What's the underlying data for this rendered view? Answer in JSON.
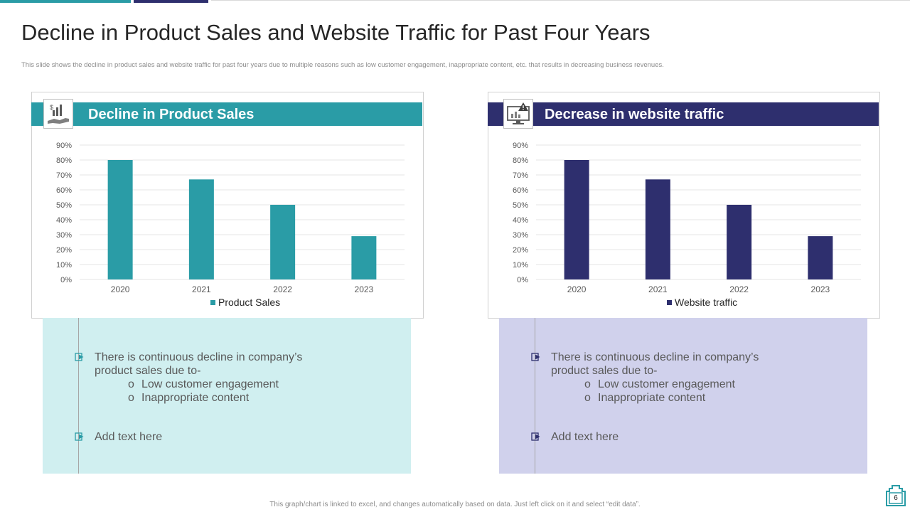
{
  "title": "Decline in Product Sales and Website Traffic for Past Four Years",
  "subtitle": "This slide shows the decline in product sales and website traffic for past four years due to multiple reasons such as low customer engagement, inappropriate content, etc. that results in decreasing business revenues.",
  "colors": {
    "teal": "#2a9ca6",
    "navy": "#2e2f6e",
    "teal_light": "#d0eff0",
    "navy_light": "#d0d1ec"
  },
  "panels": [
    {
      "header": "Decline in Product Sales",
      "icon": "hand-chart-icon",
      "bullets": [
        {
          "line1": "There is continuous  decline in company’s",
          "line2": "product sales due to-"
        },
        {
          "line1": "Add text here"
        }
      ],
      "subbullets": [
        {
          "marker": "o",
          "text": "Low customer engagement"
        },
        {
          "marker": "o",
          "text": "Inappropriate content"
        }
      ]
    },
    {
      "header": "Decrease in website traffic",
      "icon": "monitor-warning-icon",
      "bullets": [
        {
          "line1": "There is continuous  decline in company’s",
          "line2": "product sales due to-"
        },
        {
          "line1": "Add text here"
        }
      ],
      "subbullets": [
        {
          "marker": "o",
          "text": "Low customer engagement"
        },
        {
          "marker": "o",
          "text": "Inappropriate content"
        }
      ]
    }
  ],
  "chart_data": [
    {
      "type": "bar",
      "title": "Decline in Product Sales",
      "categories": [
        "2020",
        "2021",
        "2022",
        "2023"
      ],
      "series": [
        {
          "name": "Product Sales",
          "values": [
            0.8,
            0.67,
            0.5,
            0.29
          ]
        }
      ],
      "yticks": [
        "0%",
        "10%",
        "20%",
        "30%",
        "40%",
        "50%",
        "60%",
        "70%",
        "80%",
        "90%"
      ],
      "ylim": [
        0,
        0.9
      ],
      "legend": "bottom",
      "grid": true
    },
    {
      "type": "bar",
      "title": "Decrease in website traffic",
      "categories": [
        "2020",
        "2021",
        "2022",
        "2023"
      ],
      "series": [
        {
          "name": "Website traffic",
          "values": [
            0.8,
            0.67,
            0.5,
            0.29
          ]
        }
      ],
      "yticks": [
        "0%",
        "10%",
        "20%",
        "30%",
        "40%",
        "50%",
        "60%",
        "70%",
        "80%",
        "90%"
      ],
      "ylim": [
        0,
        0.9
      ],
      "legend": "bottom",
      "grid": true
    }
  ],
  "footer": "This graph/chart is linked to excel, and changes automatically based on data. Just left click on it and select “edit data”.",
  "page_number": "6"
}
